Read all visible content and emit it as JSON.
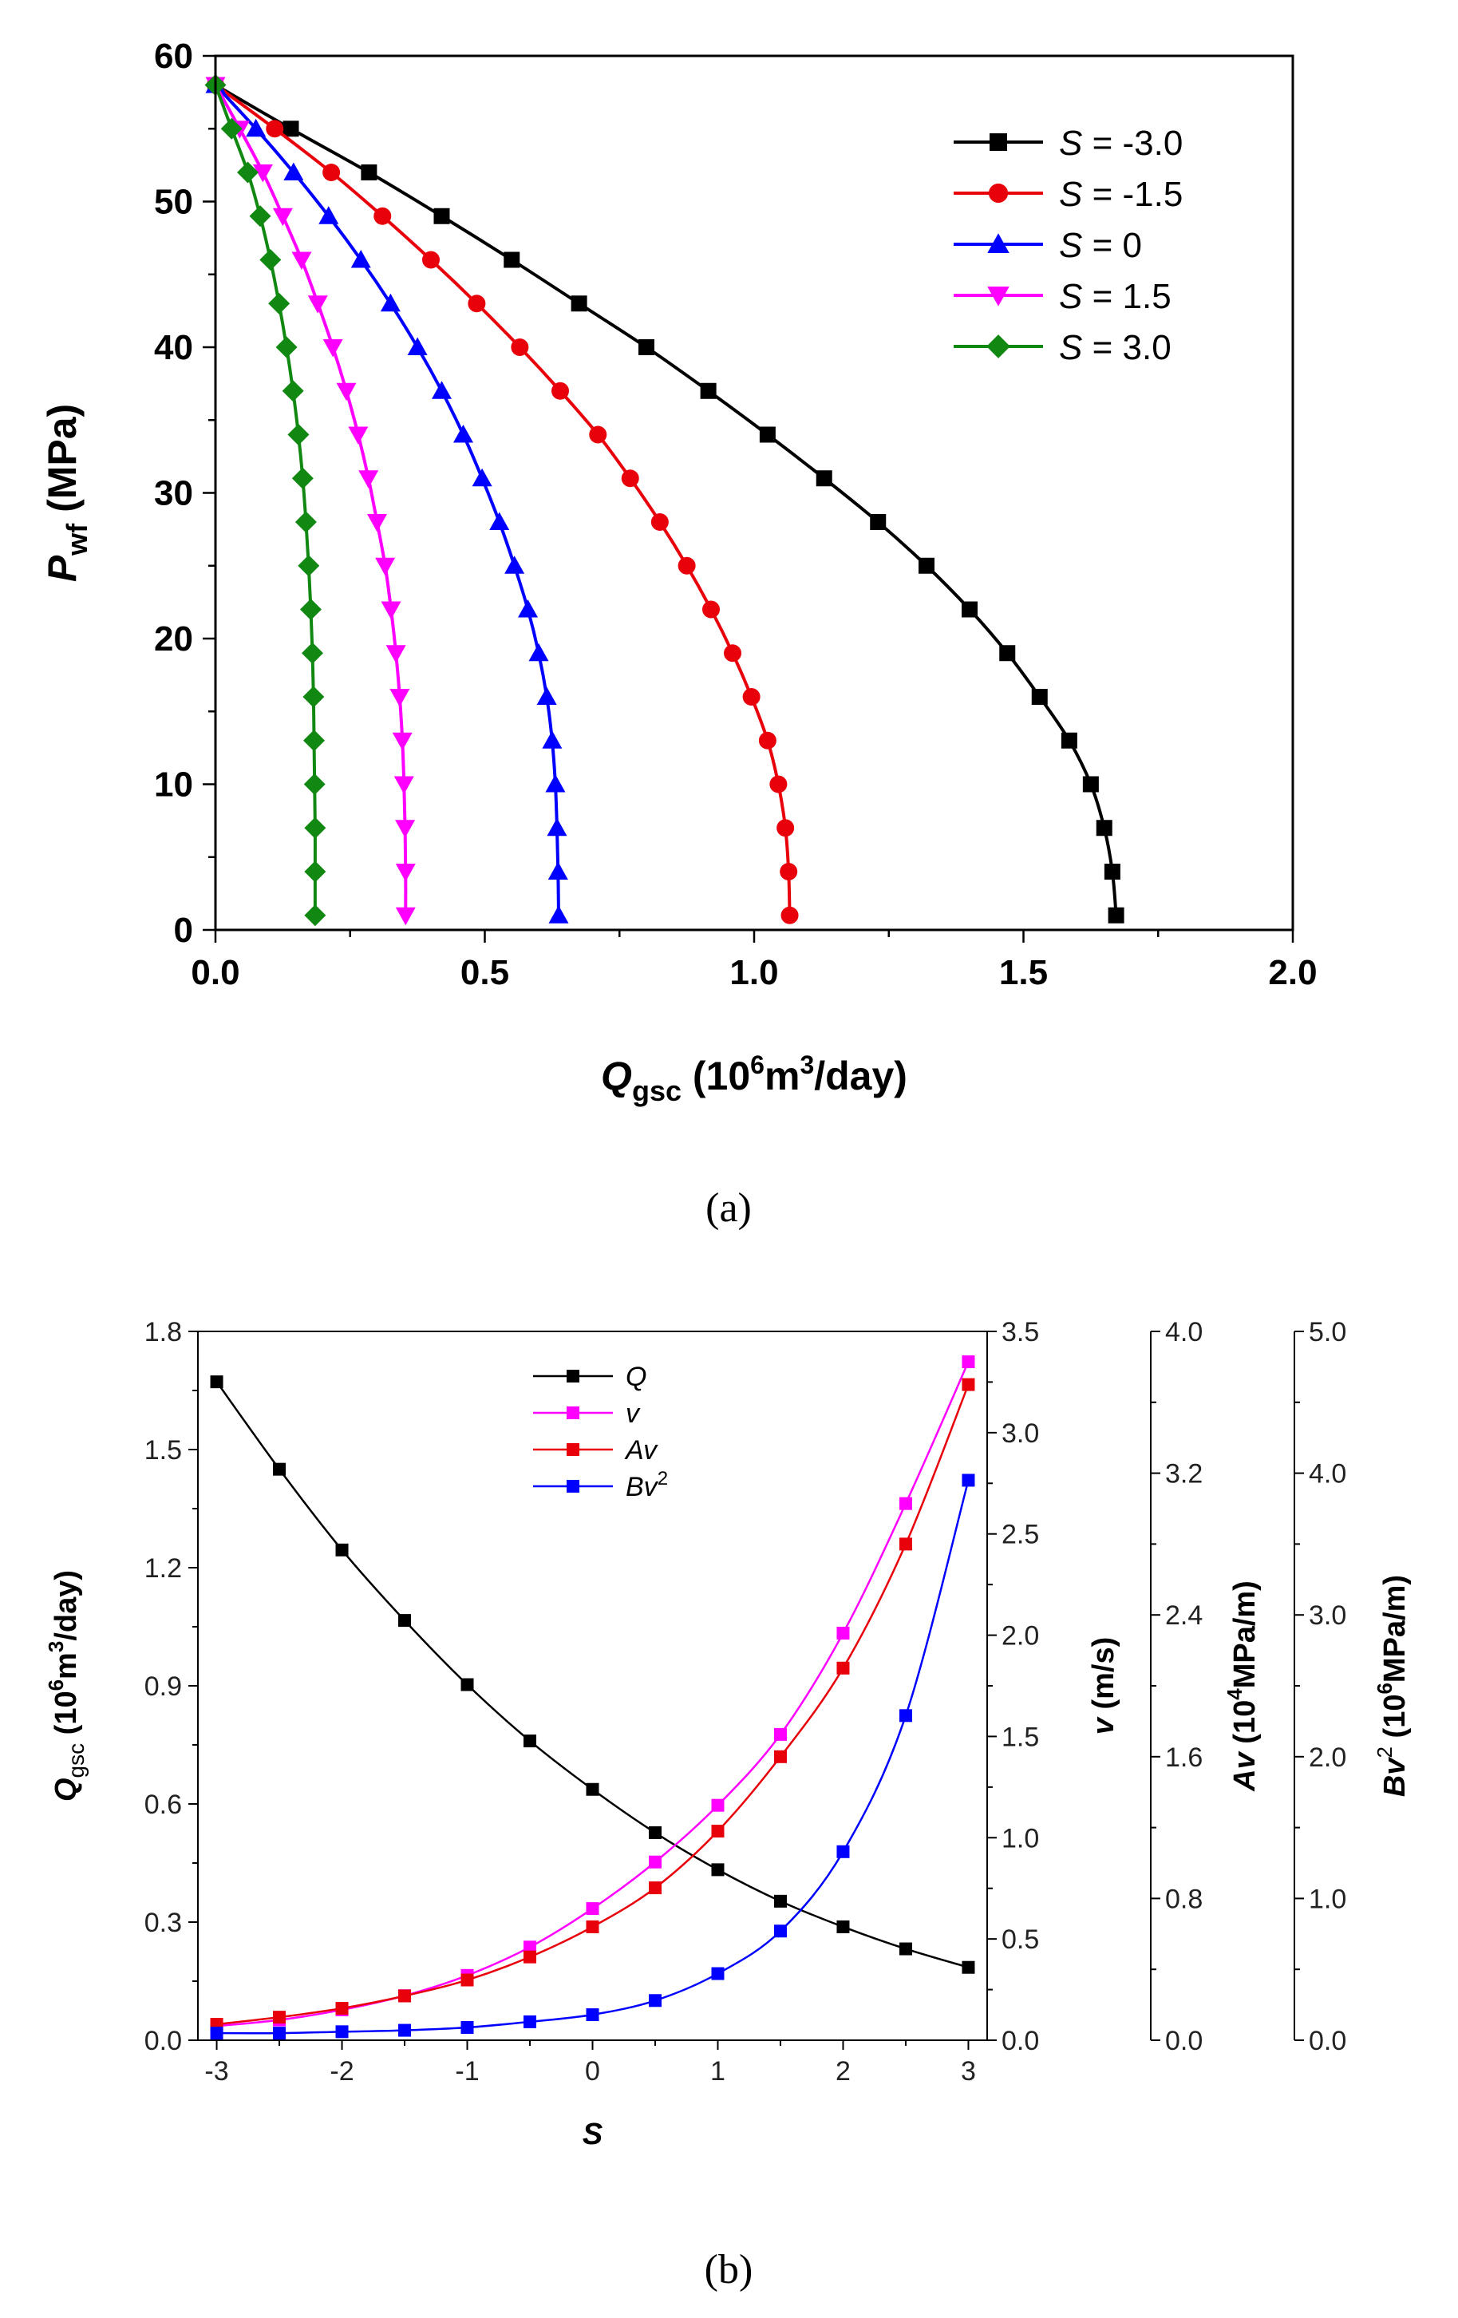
{
  "figure": {
    "caption_a": "(a)",
    "caption_b": "(b)"
  },
  "chart_data": [
    {
      "type": "line",
      "panel": "a",
      "xlabel": "Qgsc (10^6m^3/day)",
      "xlabel_parts": {
        "main": "Q",
        "sub": "gsc",
        "unit_pre": " (10",
        "unit_sup1": "6",
        "unit_mid": "m",
        "unit_sup2": "3",
        "unit_post": "/day)"
      },
      "ylabel": "Pwf (MPa)",
      "ylabel_parts": {
        "main": "P",
        "sub": "wf",
        "unit": " (MPa)"
      },
      "xlim": [
        0,
        2.0
      ],
      "ylim": [
        0,
        60
      ],
      "xticks": [
        "0.0",
        "0.5",
        "1.0",
        "1.5",
        "2.0"
      ],
      "yticks": [
        "0",
        "10",
        "20",
        "30",
        "40",
        "50",
        "60"
      ],
      "legend_position": "top-right",
      "y": [
        58,
        55,
        52,
        49,
        46,
        43,
        40,
        37,
        34,
        31,
        28,
        25,
        22,
        19,
        16,
        13,
        10,
        7,
        4,
        1.0
      ],
      "series": [
        {
          "name": "S = -3.0",
          "label_var": "S",
          "label_val": " = -3.0",
          "color": "#000000",
          "marker": "square",
          "x": [
            0.0,
            0.14,
            0.285,
            0.42,
            0.55,
            0.675,
            0.8,
            0.915,
            1.025,
            1.13,
            1.23,
            1.32,
            1.4,
            1.47,
            1.53,
            1.585,
            1.625,
            1.65,
            1.665,
            1.672
          ]
        },
        {
          "name": "S = -1.5",
          "label_var": "S",
          "label_val": " = -1.5",
          "color": "#e8000b",
          "marker": "circle",
          "x": [
            0.0,
            0.11,
            0.215,
            0.31,
            0.4,
            0.485,
            0.565,
            0.64,
            0.71,
            0.77,
            0.825,
            0.875,
            0.92,
            0.96,
            0.995,
            1.025,
            1.045,
            1.058,
            1.064,
            1.066
          ]
        },
        {
          "name": "S = 0",
          "label_var": "S",
          "label_val": " = 0",
          "color": "#0000ff",
          "marker": "triangle-up",
          "x": [
            0.0,
            0.075,
            0.145,
            0.21,
            0.27,
            0.325,
            0.375,
            0.42,
            0.46,
            0.495,
            0.527,
            0.555,
            0.58,
            0.6,
            0.615,
            0.625,
            0.631,
            0.634,
            0.636,
            0.637
          ]
        },
        {
          "name": "S = 1.5",
          "label_var": "S",
          "label_val": " = 1.5",
          "color": "#ff00ff",
          "marker": "triangle-down",
          "x": [
            0.0,
            0.045,
            0.088,
            0.125,
            0.16,
            0.19,
            0.218,
            0.243,
            0.265,
            0.284,
            0.3,
            0.315,
            0.326,
            0.335,
            0.342,
            0.347,
            0.35,
            0.352,
            0.353,
            0.353
          ]
        },
        {
          "name": "S = 3.0",
          "label_var": "S",
          "label_val": " = 3.0",
          "color": "#118811",
          "marker": "diamond",
          "x": [
            0.0,
            0.03,
            0.06,
            0.083,
            0.102,
            0.118,
            0.132,
            0.144,
            0.154,
            0.162,
            0.168,
            0.173,
            0.177,
            0.18,
            0.182,
            0.183,
            0.184,
            0.185,
            0.185,
            0.185
          ]
        }
      ]
    },
    {
      "type": "line",
      "panel": "b",
      "xlabel": "S",
      "x": [
        -3,
        -2.5,
        -2,
        -1.5,
        -1,
        -0.5,
        0,
        0.5,
        1,
        1.5,
        2,
        2.5,
        3
      ],
      "xlim": [
        -3.15,
        3.15
      ],
      "xticks": [
        "-3",
        "-2",
        "-1",
        "0",
        "1",
        "2",
        "3"
      ],
      "legend_position": "top-left",
      "axes": [
        {
          "id": "q",
          "label": "Qgsc (10^6m^3/day)",
          "label_parts": {
            "main": "Q",
            "sub": "gsc",
            "pre": " (10",
            "sup1": "6",
            "mid": "m",
            "sup2": "3",
            "post": "/day)"
          },
          "ylim": [
            0,
            1.8
          ],
          "ticks": [
            "0.0",
            "0.3",
            "0.6",
            "0.9",
            "1.2",
            "1.5",
            "1.8"
          ]
        },
        {
          "id": "v",
          "label": "v (m/s)",
          "label_parts": {
            "main": "v",
            "rest": " (m/s)"
          },
          "ylim": [
            0,
            3.5
          ],
          "ticks": [
            "0.0",
            "0.5",
            "1.0",
            "1.5",
            "2.0",
            "2.5",
            "3.0",
            "3.5"
          ]
        },
        {
          "id": "av",
          "label": "Av (10^4MPa/m)",
          "label_parts": {
            "main": "Av",
            "pre": " (10",
            "sup1": "4",
            "post": "MPa/m)"
          },
          "ylim": [
            0,
            4.0
          ],
          "ticks": [
            "0.0",
            "0.8",
            "1.6",
            "2.4",
            "3.2",
            "4.0"
          ]
        },
        {
          "id": "bv2",
          "label": "Bv^2 (10^6MPa/m)",
          "label_parts": {
            "main": "Bv",
            "sup0": "2",
            "pre": " (10",
            "sup1": "6",
            "post": "MPa/m)"
          },
          "ylim": [
            0,
            5.0
          ],
          "ticks": [
            "0.0",
            "1.0",
            "2.0",
            "3.0",
            "4.0",
            "5.0"
          ]
        }
      ],
      "series": [
        {
          "name": "Q",
          "legend_main": "Q",
          "legend_sup": "",
          "axis": "q",
          "color": "#000000",
          "values": [
            1.672,
            1.45,
            1.245,
            1.066,
            0.903,
            0.76,
            0.637,
            0.527,
            0.433,
            0.353,
            0.288,
            0.232,
            0.185
          ]
        },
        {
          "name": "v",
          "legend_main": "v",
          "legend_sup": "",
          "axis": "v",
          "color": "#ff00ff",
          "values": [
            0.07,
            0.1,
            0.15,
            0.22,
            0.32,
            0.46,
            0.65,
            0.88,
            1.16,
            1.51,
            2.01,
            2.65,
            3.35
          ]
        },
        {
          "name": "Av",
          "legend_main": "Av",
          "legend_sup": "",
          "axis": "av",
          "color": "#e8000b",
          "values": [
            0.09,
            0.13,
            0.18,
            0.25,
            0.34,
            0.47,
            0.64,
            0.86,
            1.18,
            1.6,
            2.1,
            2.8,
            3.7
          ]
        },
        {
          "name": "Bv2",
          "legend_main": "Bv",
          "legend_sup": "2",
          "axis": "bv2",
          "color": "#0000ff",
          "values": [
            0.05,
            0.05,
            0.06,
            0.07,
            0.09,
            0.13,
            0.18,
            0.28,
            0.47,
            0.77,
            1.33,
            2.29,
            3.95
          ]
        }
      ]
    }
  ]
}
